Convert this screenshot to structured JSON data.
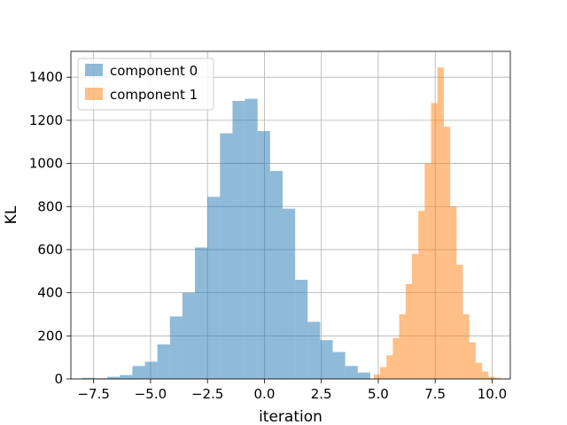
{
  "chart_data": {
    "type": "bar",
    "title": "",
    "xlabel": "iteration",
    "ylabel": "KL",
    "xlim": [
      -8.5,
      10.8
    ],
    "ylim": [
      0,
      1520
    ],
    "xticks": [
      -7.5,
      -5.0,
      -2.5,
      0.0,
      2.5,
      5.0,
      7.5,
      10.0
    ],
    "xtick_labels": [
      "−7.5",
      "−5.0",
      "−2.5",
      "0.0",
      "2.5",
      "5.0",
      "7.5",
      "10.0"
    ],
    "yticks": [
      0,
      200,
      400,
      600,
      800,
      1000,
      1200,
      1400
    ],
    "ytick_labels": [
      "0",
      "200",
      "400",
      "600",
      "800",
      "1000",
      "1200",
      "1400"
    ],
    "grid": true,
    "legend_position": "top-left",
    "series": [
      {
        "name": "component 0",
        "color": "#1f77b4",
        "alpha": 0.5,
        "bin_edges": [
          -8.0,
          -7.45,
          -6.9,
          -6.35,
          -5.8,
          -5.25,
          -4.7,
          -4.15,
          -3.6,
          -3.05,
          -2.5,
          -1.95,
          -1.4,
          -0.85,
          -0.3,
          0.25,
          0.8,
          1.35,
          1.9,
          2.45,
          3.0,
          3.55,
          4.1,
          4.65
        ],
        "counts": [
          5,
          3,
          10,
          18,
          60,
          80,
          160,
          290,
          400,
          610,
          845,
          1140,
          1290,
          1300,
          1150,
          965,
          790,
          460,
          265,
          180,
          125,
          60,
          30
        ]
      },
      {
        "name": "component 1",
        "color": "#ff7f0e",
        "alpha": 0.5,
        "bin_edges": [
          4.8,
          5.08,
          5.36,
          5.64,
          5.92,
          6.2,
          6.48,
          6.76,
          7.04,
          7.32,
          7.6,
          7.88,
          8.16,
          8.44,
          8.72,
          9.0,
          9.28,
          9.56,
          9.84,
          10.12,
          10.4
        ],
        "counts": [
          20,
          55,
          110,
          190,
          300,
          440,
          580,
          780,
          1000,
          1280,
          1445,
          1170,
          800,
          530,
          300,
          170,
          75,
          35,
          10,
          5
        ]
      }
    ]
  }
}
